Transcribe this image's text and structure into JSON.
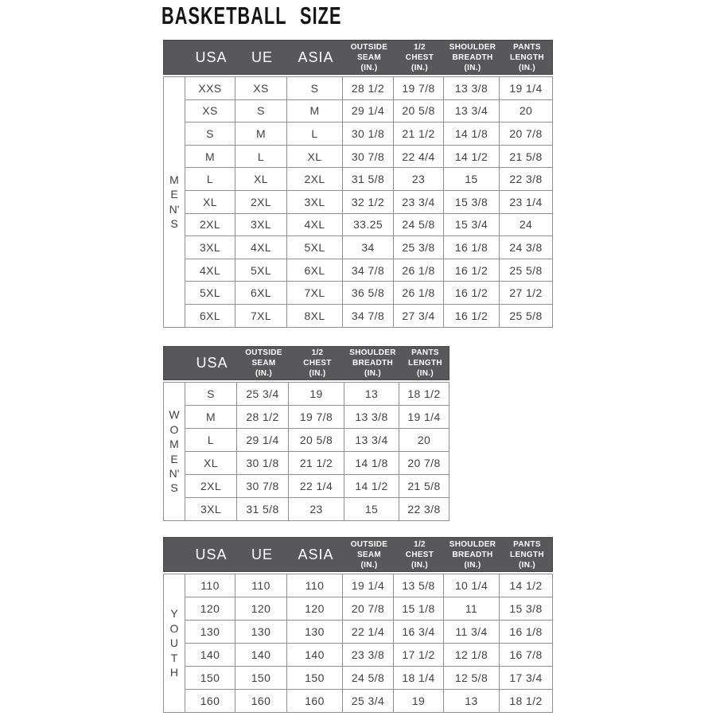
{
  "page": {
    "title": "BASKETBALL SIZE"
  },
  "colors": {
    "header_bg": "#58585a",
    "header_text": "#ffffff",
    "table_border": "#909090",
    "cell_text": "#414141",
    "title_text": "#141414"
  },
  "tables": [
    {
      "id": "mens",
      "group_label": "MEN'S",
      "group_label_stacked": "M\nE\nN'\nS",
      "columns": [
        {
          "text": "",
          "size": "lg"
        },
        {
          "text": "USA",
          "size": "lg"
        },
        {
          "text": "UE",
          "size": "lg"
        },
        {
          "text": "ASIA",
          "size": "lg"
        },
        {
          "text": "OUTSIDE\nSEAM\n(IN.)",
          "size": "sm"
        },
        {
          "text": "1/2\nCHEST\n(IN.)",
          "size": "sm"
        },
        {
          "text": "SHOULDER\nBREADTH\n(IN.)",
          "size": "sm"
        },
        {
          "text": "PANTS\nLENGTH\n(IN.)",
          "size": "sm"
        }
      ],
      "rows": [
        [
          "XXS",
          "XS",
          "S",
          "28 1/2",
          "19 7/8",
          "13 3/8",
          "19 1/4"
        ],
        [
          "XS",
          "S",
          "M",
          "29 1/4",
          "20 5/8",
          "13 3/4",
          "20"
        ],
        [
          "S",
          "M",
          "L",
          "30 1/8",
          "21 1/2",
          "14 1/8",
          "20 7/8"
        ],
        [
          "M",
          "L",
          "XL",
          "30 7/8",
          "22 4/4",
          "14 1/2",
          "21 5/8"
        ],
        [
          "L",
          "XL",
          "2XL",
          "31 5/8",
          "23",
          "15",
          "22 3/8"
        ],
        [
          "XL",
          "2XL",
          "3XL",
          "32 1/2",
          "23 3/4",
          "15 3/8",
          "23 1/4"
        ],
        [
          "2XL",
          "3XL",
          "4XL",
          "33.25",
          "24 5/8",
          "15 3/4",
          "24"
        ],
        [
          "3XL",
          "4XL",
          "5XL",
          "34",
          "25 3/8",
          "16 1/8",
          "24 3/8"
        ],
        [
          "4XL",
          "5XL",
          "6XL",
          "34 7/8",
          "26 1/8",
          "16 1/2",
          "25 5/8"
        ],
        [
          "5XL",
          "6XL",
          "7XL",
          "36 5/8",
          "26 1/8",
          "16 1/2",
          "27 1/2"
        ],
        [
          "6XL",
          "7XL",
          "8XL",
          "34 7/8",
          "27 3/4",
          "16 1/2",
          "25 5/8"
        ]
      ]
    },
    {
      "id": "womens",
      "group_label": "WOMEN'S",
      "group_label_stacked": "W\nO\nM\nE\nN'\nS",
      "columns": [
        {
          "text": "",
          "size": "lg"
        },
        {
          "text": "USA",
          "size": "lg"
        },
        {
          "text": "OUTSIDE\nSEAM\n(IN.)",
          "size": "sm"
        },
        {
          "text": "1/2\nCHEST\n(IN.)",
          "size": "sm"
        },
        {
          "text": "SHOULDER\nBREADTH\n(IN.)",
          "size": "sm"
        },
        {
          "text": "PANTS\nLENGTH\n(IN.)",
          "size": "sm"
        }
      ],
      "rows": [
        [
          "S",
          "25 3/4",
          "19",
          "13",
          "18 1/2"
        ],
        [
          "M",
          "28 1/2",
          "19 7/8",
          "13 3/8",
          "19 1/4"
        ],
        [
          "L",
          "29 1/4",
          "20 5/8",
          "13 3/4",
          "20"
        ],
        [
          "XL",
          "30 1/8",
          "21 1/2",
          "14 1/8",
          "20 7/8"
        ],
        [
          "2XL",
          "30 7/8",
          "22 1/4",
          "14 1/2",
          "21 5/8"
        ],
        [
          "3XL",
          "31 5/8",
          "23",
          "15",
          "22 3/8"
        ]
      ]
    },
    {
      "id": "youth",
      "group_label": "YOUTH",
      "group_label_stacked": "Y\nO\nU\nT\nH",
      "columns": [
        {
          "text": "",
          "size": "lg"
        },
        {
          "text": "USA",
          "size": "lg"
        },
        {
          "text": "UE",
          "size": "lg"
        },
        {
          "text": "ASIA",
          "size": "lg"
        },
        {
          "text": "OUTSIDE\nSEAM\n(IN.)",
          "size": "sm"
        },
        {
          "text": "1/2\nCHEST\n(IN.)",
          "size": "sm"
        },
        {
          "text": "SHOULDER\nBREADTH\n(IN.)",
          "size": "sm"
        },
        {
          "text": "PANTS\nLENGTH\n(IN.)",
          "size": "sm"
        }
      ],
      "rows": [
        [
          "110",
          "110",
          "110",
          "19 1/4",
          "13 5/8",
          "10 1/4",
          "14 1/2"
        ],
        [
          "120",
          "120",
          "120",
          "20 7/8",
          "15 1/8",
          "11",
          "15 3/8"
        ],
        [
          "130",
          "130",
          "130",
          "22 1/4",
          "16 3/4",
          "11 3/4",
          "16 1/8"
        ],
        [
          "140",
          "140",
          "140",
          "23 3/8",
          "17 1/2",
          "12 1/8",
          "16 7/8"
        ],
        [
          "150",
          "150",
          "150",
          "24 5/8",
          "18 1/4",
          "12 5/8",
          "17 3/4"
        ],
        [
          "160",
          "160",
          "160",
          "25 3/4",
          "19",
          "13",
          "18 1/2"
        ]
      ]
    }
  ]
}
